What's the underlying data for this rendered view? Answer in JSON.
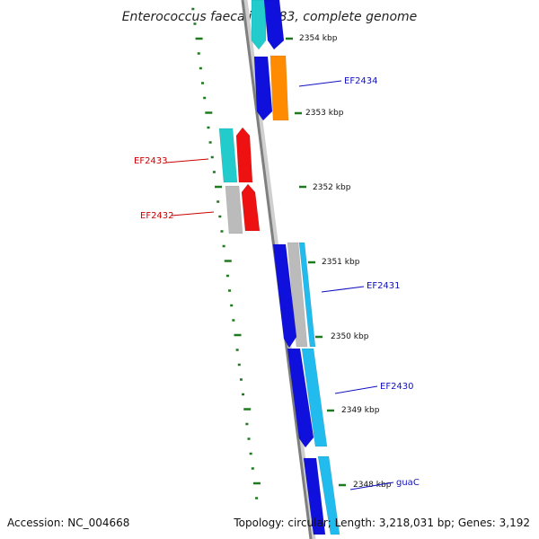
{
  "title": "Enterococcus faecalis V583, complete genome",
  "footer": {
    "accession": "Accession: NC_004668",
    "topology": "Topology: circular; Length: 3,218,031 bp; Genes: 3,192"
  },
  "colors": {
    "backbone": "#7f7f7f",
    "tick": "#1e7a1e",
    "forward_label": "#1010c0",
    "reverse_label": "#cc0000",
    "blue": "#1010dd",
    "cyan": "#22cccc",
    "light_blue": "#22bbee",
    "orange": "#ff8c00",
    "red": "#ee1111",
    "gray": "#bbbbbb"
  },
  "kbp_ticks": [
    "2354 kbp",
    "2353 kbp",
    "2352 kbp",
    "2351 kbp",
    "2350 kbp",
    "2349 kbp",
    "2348 kbp"
  ],
  "gene_labels": [
    {
      "name": "EF2434",
      "strand": "forward"
    },
    {
      "name": "EF2433",
      "strand": "reverse"
    },
    {
      "name": "EF2432",
      "strand": "reverse"
    },
    {
      "name": "EF2431",
      "strand": "forward"
    },
    {
      "name": "EF2430",
      "strand": "forward"
    },
    {
      "name": "guaC",
      "strand": "forward"
    }
  ],
  "features": [
    {
      "track": "outer",
      "color": "cyan",
      "shape": "arrow-down"
    },
    {
      "track": "inner",
      "color": "blue",
      "shape": "arrow-down"
    },
    {
      "track": "outer",
      "color": "orange",
      "shape": "box"
    },
    {
      "track": "inner",
      "color": "blue",
      "shape": "arrow-down"
    },
    {
      "track": "reverse-inner",
      "color": "red",
      "shape": "arrow-up"
    },
    {
      "track": "reverse-outer",
      "color": "cyan",
      "shape": "box"
    },
    {
      "track": "reverse-inner",
      "color": "red",
      "shape": "arrow-up"
    },
    {
      "track": "reverse-outer",
      "color": "gray",
      "shape": "box"
    },
    {
      "track": "outer",
      "color": "light_blue",
      "shape": "box"
    },
    {
      "track": "middle",
      "color": "gray",
      "shape": "box"
    },
    {
      "track": "inner",
      "color": "blue",
      "shape": "arrow-down"
    },
    {
      "track": "outer",
      "color": "light_blue",
      "shape": "box"
    },
    {
      "track": "inner",
      "color": "blue",
      "shape": "arrow-down"
    },
    {
      "track": "outer",
      "color": "light_blue",
      "shape": "box"
    },
    {
      "track": "inner",
      "color": "blue",
      "shape": "box"
    }
  ]
}
